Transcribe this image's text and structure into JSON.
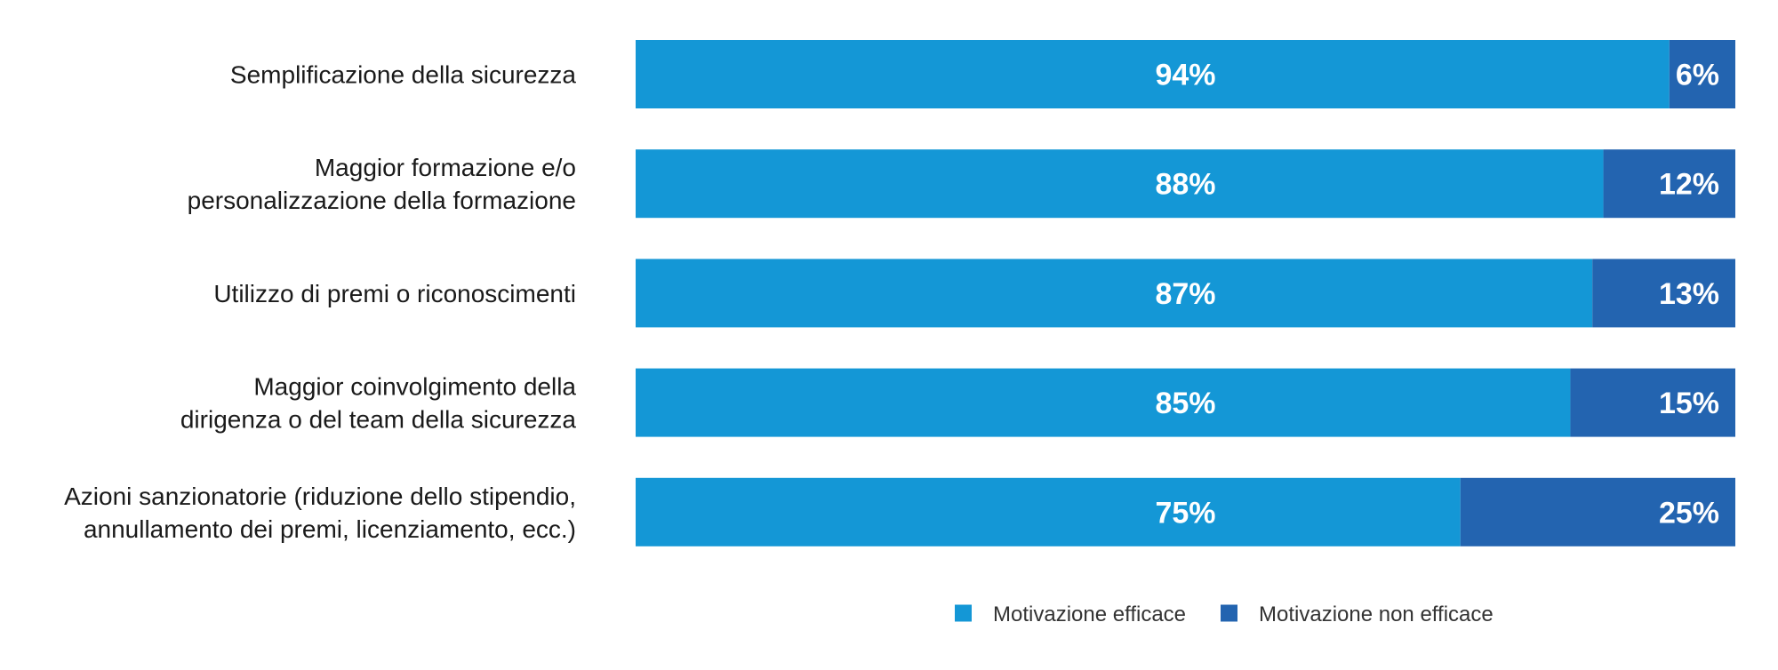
{
  "chart_data": {
    "type": "bar",
    "orientation": "horizontal",
    "stacked": true,
    "categories": [
      [
        "Semplificazione della sicurezza"
      ],
      [
        "Maggior formazione e/o",
        "personalizzazione della formazione"
      ],
      [
        "Utilizzo di premi o riconoscimenti"
      ],
      [
        "Maggior coinvolgimento della",
        "dirigenza o del team della sicurezza"
      ],
      [
        "Azioni sanzionatorie (riduzione dello stipendio,",
        "annullamento dei premi, licenziamento, ecc.)"
      ]
    ],
    "series": [
      {
        "name": "Motivazione efficace",
        "values": [
          94,
          88,
          87,
          85,
          75
        ],
        "labels": [
          "94%",
          "88%",
          "87%",
          "85%",
          "75%"
        ],
        "color": "#1497d6"
      },
      {
        "name": "Motivazione non efficace",
        "values": [
          6,
          12,
          13,
          15,
          25
        ],
        "labels": [
          "6%",
          "12%",
          "13%",
          "15%",
          "25%"
        ],
        "color": "#2364b0"
      }
    ],
    "xlim": [
      0,
      100
    ],
    "grid": false,
    "legend_position": "bottom"
  }
}
